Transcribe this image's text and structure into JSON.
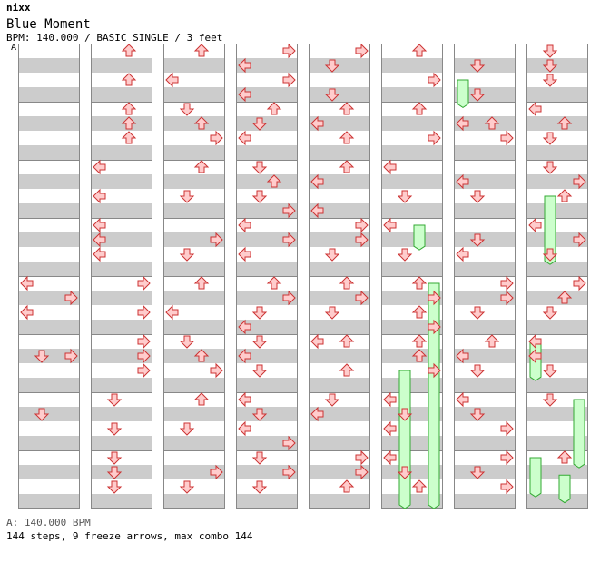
{
  "header": {
    "artist": "nixx",
    "title": "Blue Moment",
    "info": "BPM: 140.000 / BASIC SINGLE / 3 feet",
    "bpm_marker": "A"
  },
  "footer": {
    "bpm_line": "A: 140.000 BPM",
    "stats": "144 steps, 9 freeze arrows, max combo 144"
  },
  "colors": {
    "stripe": "#cccccc",
    "arrow_fill": "#ffcccc",
    "arrow_stroke": "#cc3333",
    "freeze_fill": "#ccffcc",
    "freeze_stroke": "#33aa33",
    "bpm_line": "#7aa8d8"
  },
  "chart_data": {
    "type": "step-chart",
    "measures_per_column": 8,
    "rows_per_measure": 8,
    "arrows": [
      {
        "m": 3,
        "lane": "left",
        "row": 4
      },
      {
        "m": 3,
        "lane": "left",
        "row": 6
      },
      {
        "m": 4,
        "lane": "right",
        "row": 1
      },
      {
        "m": 4,
        "lane": "right",
        "row": 5
      },
      {
        "m": 5,
        "lane": "down",
        "row": 1
      },
      {
        "m": 5,
        "lane": "down",
        "row": 5
      },
      {
        "m": 8,
        "lane": "up",
        "row": 0
      },
      {
        "m": 8,
        "lane": "up",
        "row": 2
      },
      {
        "m": 9,
        "lane": "up",
        "row": 0
      },
      {
        "m": 9,
        "lane": "up",
        "row": 1
      },
      {
        "m": 9,
        "lane": "up",
        "row": 2
      },
      {
        "m": 10,
        "lane": "left",
        "row": 0
      },
      {
        "m": 10,
        "lane": "left",
        "row": 2
      },
      {
        "m": 11,
        "lane": "left",
        "row": 0
      },
      {
        "m": 11,
        "lane": "left",
        "row": 1
      },
      {
        "m": 11,
        "lane": "left",
        "row": 2
      },
      {
        "m": 12,
        "lane": "right",
        "row": 0
      },
      {
        "m": 12,
        "lane": "right",
        "row": 2
      },
      {
        "m": 13,
        "lane": "right",
        "row": 0
      },
      {
        "m": 13,
        "lane": "right",
        "row": 1
      },
      {
        "m": 13,
        "lane": "right",
        "row": 2
      },
      {
        "m": 14,
        "lane": "down",
        "row": 0
      },
      {
        "m": 14,
        "lane": "down",
        "row": 2
      },
      {
        "m": 15,
        "lane": "down",
        "row": 0
      },
      {
        "m": 15,
        "lane": "down",
        "row": 1
      },
      {
        "m": 15,
        "lane": "down",
        "row": 2
      },
      {
        "m": 16,
        "lane": "up",
        "row": 0
      },
      {
        "m": 16,
        "lane": "left",
        "row": 2
      },
      {
        "m": 17,
        "lane": "down",
        "row": 0
      },
      {
        "m": 17,
        "lane": "up",
        "row": 1
      },
      {
        "m": 17,
        "lane": "right",
        "row": 2
      },
      {
        "m": 18,
        "lane": "up",
        "row": 0
      },
      {
        "m": 18,
        "lane": "down",
        "row": 2
      },
      {
        "m": 19,
        "lane": "right",
        "row": 1
      },
      {
        "m": 19,
        "lane": "down",
        "row": 2
      },
      {
        "m": 20,
        "lane": "up",
        "row": 0
      },
      {
        "m": 20,
        "lane": "left",
        "row": 2
      },
      {
        "m": 21,
        "lane": "down",
        "row": 0
      },
      {
        "m": 21,
        "lane": "up",
        "row": 1
      },
      {
        "m": 21,
        "lane": "right",
        "row": 2
      },
      {
        "m": 22,
        "lane": "up",
        "row": 0
      },
      {
        "m": 22,
        "lane": "down",
        "row": 2
      },
      {
        "m": 23,
        "lane": "right",
        "row": 1
      },
      {
        "m": 23,
        "lane": "down",
        "row": 2
      },
      {
        "m": 24,
        "lane": "right",
        "row": 0
      },
      {
        "m": 24,
        "lane": "left",
        "row": 1
      },
      {
        "m": 24,
        "lane": "right",
        "row": 2
      },
      {
        "m": 24,
        "lane": "left",
        "row": 3
      },
      {
        "m": 25,
        "lane": "up",
        "row": 0
      },
      {
        "m": 25,
        "lane": "down",
        "row": 1
      },
      {
        "m": 25,
        "lane": "left",
        "row": 2
      },
      {
        "m": 26,
        "lane": "down",
        "row": 0
      },
      {
        "m": 26,
        "lane": "up",
        "row": 1
      },
      {
        "m": 26,
        "lane": "down",
        "row": 2
      },
      {
        "m": 26,
        "lane": "right",
        "row": 3
      },
      {
        "m": 27,
        "lane": "left",
        "row": 0
      },
      {
        "m": 27,
        "lane": "right",
        "row": 1
      },
      {
        "m": 27,
        "lane": "left",
        "row": 2
      },
      {
        "m": 28,
        "lane": "up",
        "row": 0
      },
      {
        "m": 28,
        "lane": "right",
        "row": 1
      },
      {
        "m": 28,
        "lane": "down",
        "row": 2
      },
      {
        "m": 28,
        "lane": "left",
        "row": 3
      },
      {
        "m": 29,
        "lane": "down",
        "row": 0
      },
      {
        "m": 29,
        "lane": "left",
        "row": 1
      },
      {
        "m": 29,
        "lane": "down",
        "row": 2
      },
      {
        "m": 30,
        "lane": "left",
        "row": 0
      },
      {
        "m": 30,
        "lane": "down",
        "row": 1
      },
      {
        "m": 30,
        "lane": "left",
        "row": 2
      },
      {
        "m": 30,
        "lane": "right",
        "row": 3
      },
      {
        "m": 31,
        "lane": "down",
        "row": 0
      },
      {
        "m": 31,
        "lane": "right",
        "row": 1
      },
      {
        "m": 31,
        "lane": "down",
        "row": 2
      },
      {
        "m": 32,
        "lane": "right",
        "row": 0
      },
      {
        "m": 32,
        "lane": "down",
        "row": 1
      },
      {
        "m": 32,
        "lane": "down",
        "row": 3
      },
      {
        "m": 33,
        "lane": "left",
        "row": 1
      },
      {
        "m": 33,
        "lane": "up",
        "row": 0
      },
      {
        "m": 33,
        "lane": "up",
        "row": 2
      },
      {
        "m": 34,
        "lane": "up",
        "row": 0
      },
      {
        "m": 34,
        "lane": "left",
        "row": 1
      },
      {
        "m": 34,
        "lane": "left",
        "row": 3
      },
      {
        "m": 35,
        "lane": "right",
        "row": 0
      },
      {
        "m": 35,
        "lane": "right",
        "row": 1
      },
      {
        "m": 35,
        "lane": "down",
        "row": 2
      },
      {
        "m": 36,
        "lane": "up",
        "row": 0
      },
      {
        "m": 36,
        "lane": "right",
        "row": 1
      },
      {
        "m": 36,
        "lane": "down",
        "row": 2
      },
      {
        "m": 37,
        "lane": "left",
        "row": 0
      },
      {
        "m": 37,
        "lane": "up",
        "row": 0
      },
      {
        "m": 37,
        "lane": "up",
        "row": 2
      },
      {
        "m": 38,
        "lane": "down",
        "row": 0
      },
      {
        "m": 38,
        "lane": "left",
        "row": 1
      },
      {
        "m": 39,
        "lane": "right",
        "row": 0
      },
      {
        "m": 39,
        "lane": "right",
        "row": 1
      },
      {
        "m": 39,
        "lane": "up",
        "row": 2
      },
      {
        "m": 40,
        "lane": "up",
        "row": 0
      },
      {
        "m": 40,
        "lane": "right",
        "row": 2
      },
      {
        "m": 41,
        "lane": "up",
        "row": 0
      },
      {
        "m": 41,
        "lane": "right",
        "row": 2
      },
      {
        "m": 42,
        "lane": "left",
        "row": 0
      },
      {
        "m": 42,
        "lane": "down",
        "row": 2
      },
      {
        "m": 43,
        "lane": "left",
        "row": 0
      },
      {
        "m": 43,
        "lane": "down",
        "row": 2
      },
      {
        "m": 44,
        "lane": "up",
        "row": 0
      },
      {
        "m": 44,
        "lane": "right",
        "row": 1
      },
      {
        "m": 44,
        "lane": "up",
        "row": 2
      },
      {
        "m": 44,
        "lane": "right",
        "row": 3
      },
      {
        "m": 45,
        "lane": "up",
        "row": 0
      },
      {
        "m": 45,
        "lane": "up",
        "row": 1
      },
      {
        "m": 45,
        "lane": "right",
        "row": 2
      },
      {
        "m": 46,
        "lane": "left",
        "row": 0
      },
      {
        "m": 46,
        "lane": "down",
        "row": 1
      },
      {
        "m": 46,
        "lane": "left",
        "row": 2
      },
      {
        "m": 47,
        "lane": "left",
        "row": 0
      },
      {
        "m": 47,
        "lane": "down",
        "row": 1
      },
      {
        "m": 47,
        "lane": "up",
        "row": 2
      },
      {
        "m": 48,
        "lane": "down",
        "row": 1
      },
      {
        "m": 48,
        "lane": "down",
        "row": 3
      },
      {
        "m": 49,
        "lane": "up",
        "row": 1
      },
      {
        "m": 49,
        "lane": "left",
        "row": 1
      },
      {
        "m": 49,
        "lane": "right",
        "row": 2
      },
      {
        "m": 50,
        "lane": "left",
        "row": 1
      },
      {
        "m": 50,
        "lane": "down",
        "row": 2
      },
      {
        "m": 51,
        "lane": "down",
        "row": 1
      },
      {
        "m": 51,
        "lane": "left",
        "row": 2
      },
      {
        "m": 52,
        "lane": "right",
        "row": 0
      },
      {
        "m": 52,
        "lane": "right",
        "row": 1
      },
      {
        "m": 52,
        "lane": "down",
        "row": 2
      },
      {
        "m": 53,
        "lane": "up",
        "row": 0
      },
      {
        "m": 53,
        "lane": "left",
        "row": 1
      },
      {
        "m": 53,
        "lane": "down",
        "row": 2
      },
      {
        "m": 54,
        "lane": "left",
        "row": 0
      },
      {
        "m": 54,
        "lane": "down",
        "row": 1
      },
      {
        "m": 54,
        "lane": "right",
        "row": 2
      },
      {
        "m": 55,
        "lane": "right",
        "row": 0
      },
      {
        "m": 55,
        "lane": "down",
        "row": 1
      },
      {
        "m": 55,
        "lane": "right",
        "row": 2
      },
      {
        "m": 56,
        "lane": "down",
        "row": 0
      },
      {
        "m": 56,
        "lane": "down",
        "row": 1
      },
      {
        "m": 56,
        "lane": "down",
        "row": 2
      },
      {
        "m": 57,
        "lane": "left",
        "row": 0
      },
      {
        "m": 57,
        "lane": "up",
        "row": 1
      },
      {
        "m": 57,
        "lane": "down",
        "row": 2
      },
      {
        "m": 58,
        "lane": "down",
        "row": 0
      },
      {
        "m": 58,
        "lane": "right",
        "row": 1
      },
      {
        "m": 58,
        "lane": "up",
        "row": 2
      },
      {
        "m": 59,
        "lane": "left",
        "row": 0
      },
      {
        "m": 59,
        "lane": "right",
        "row": 1
      },
      {
        "m": 59,
        "lane": "down",
        "row": 2
      },
      {
        "m": 60,
        "lane": "right",
        "row": 0
      },
      {
        "m": 60,
        "lane": "up",
        "row": 1
      },
      {
        "m": 60,
        "lane": "down",
        "row": 2
      },
      {
        "m": 61,
        "lane": "left",
        "row": 0
      },
      {
        "m": 61,
        "lane": "left",
        "row": 1
      },
      {
        "m": 61,
        "lane": "down",
        "row": 2
      },
      {
        "m": 62,
        "lane": "down",
        "row": 0
      },
      {
        "m": 63,
        "lane": "up",
        "row": 0
      }
    ],
    "freezes": [
      {
        "lane": "left",
        "from": 61.0,
        "to": 61.8
      },
      {
        "lane": "right",
        "from": 44.0,
        "to": 48.0
      },
      {
        "lane": "up",
        "from": 43.0,
        "to": 43.55
      },
      {
        "lane": "down",
        "from": 45.5,
        "to": 49.3
      },
      {
        "lane": "down",
        "from": 58.5,
        "to": 59.8
      },
      {
        "lane": "left",
        "from": 48.5,
        "to": 49.1
      },
      {
        "lane": "up",
        "from": 63.3,
        "to": 63.9
      },
      {
        "lane": "right",
        "from": 62.0,
        "to": 63.3
      },
      {
        "lane": "left",
        "from": 63.0,
        "to": 63.8
      }
    ]
  }
}
